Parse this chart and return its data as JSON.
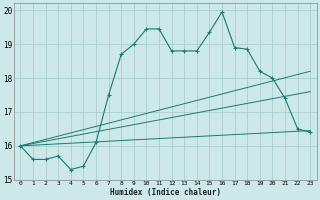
{
  "xlabel": "Humidex (Indice chaleur)",
  "bg_color": "#cce8e8",
  "line_color": "#1a7a6e",
  "grid_color": "#aacece",
  "xlim": [
    -0.5,
    23.5
  ],
  "ylim": [
    15.0,
    20.2
  ],
  "yticks": [
    15,
    16,
    17,
    18,
    19,
    20
  ],
  "xticks": [
    0,
    1,
    2,
    3,
    4,
    5,
    6,
    7,
    8,
    9,
    10,
    11,
    12,
    13,
    14,
    15,
    16,
    17,
    18,
    19,
    20,
    21,
    22,
    23
  ],
  "line1_x": [
    0,
    1,
    2,
    3,
    4,
    5,
    6,
    7,
    8,
    9,
    10,
    11,
    12,
    13,
    14,
    15,
    16,
    17,
    18,
    19,
    20,
    21,
    22,
    23
  ],
  "line1_y": [
    16.0,
    15.6,
    15.6,
    15.7,
    15.3,
    15.4,
    16.1,
    17.5,
    18.7,
    19.0,
    19.45,
    19.45,
    18.8,
    18.8,
    18.8,
    19.35,
    19.95,
    18.9,
    18.85,
    18.2,
    18.0,
    17.4,
    16.5,
    16.4
  ],
  "line2_x": [
    0,
    23
  ],
  "line2_y": [
    16.0,
    16.45
  ],
  "line3_x": [
    0,
    23
  ],
  "line3_y": [
    16.0,
    17.6
  ],
  "line4_x": [
    0,
    23
  ],
  "line4_y": [
    16.0,
    18.2
  ]
}
